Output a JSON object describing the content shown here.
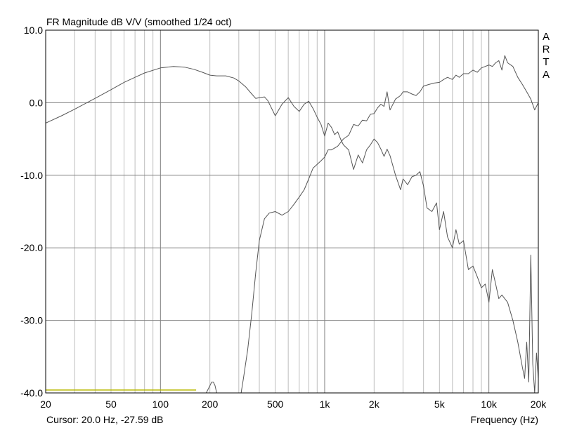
{
  "chart_data": {
    "type": "line",
    "title": "FR Magnitude dB V/V (smoothed 1/24 oct)",
    "watermark": [
      "A",
      "R",
      "T",
      "A"
    ],
    "xlabel": "Frequency (Hz)",
    "ylabel": "",
    "x_scale": "log",
    "xlim": [
      20,
      20000
    ],
    "ylim": [
      -40,
      10
    ],
    "grid": true,
    "y_ticks": [
      10,
      0,
      -10,
      -20,
      -30,
      -40
    ],
    "y_tick_labels": [
      "10.0",
      "0.0",
      "-10.0",
      "-20.0",
      "-30.0",
      "-40.0"
    ],
    "x_ticks": [
      20,
      50,
      100,
      200,
      500,
      1000,
      2000,
      5000,
      10000,
      20000
    ],
    "x_tick_labels": [
      "20",
      "50",
      "100",
      "200",
      "500",
      "1k",
      "2k",
      "5k",
      "10k",
      "20k"
    ],
    "cursor_text": "Cursor: 20.0 Hz, -27.59 dB",
    "series": [
      {
        "color": "#555555",
        "x": [
          20,
          25,
          30,
          40,
          50,
          60,
          70,
          80,
          100,
          120,
          140,
          160,
          180,
          200,
          220,
          250,
          280,
          300,
          330,
          360,
          380,
          400,
          430,
          450,
          500,
          550,
          600,
          650,
          700,
          750,
          800,
          850,
          900,
          950,
          1000,
          1050,
          1100,
          1150,
          1200,
          1250,
          1300,
          1400,
          1500,
          1600,
          1700,
          1800,
          1900,
          2000,
          2100,
          2200,
          2300,
          2400,
          2500,
          2700,
          2900,
          3000,
          3200,
          3400,
          3600,
          3800,
          4000,
          4200,
          4500,
          4800,
          5000,
          5300,
          5600,
          6000,
          6300,
          6600,
          7000,
          7500,
          8000,
          8500,
          9000,
          9500,
          10000,
          10500,
          11000,
          11500,
          12000,
          13000,
          14000,
          15000,
          16000,
          16500,
          17000,
          17500,
          18000,
          18500,
          19000,
          19500,
          20000
        ],
        "y": [
          -2.8,
          -1.8,
          -0.9,
          0.6,
          1.8,
          2.8,
          3.5,
          4.1,
          4.8,
          5.0,
          4.9,
          4.6,
          4.2,
          3.8,
          3.7,
          3.7,
          3.4,
          3.0,
          2.2,
          1.2,
          0.6,
          0.7,
          0.8,
          0.3,
          -1.8,
          -0.2,
          0.7,
          -0.5,
          -1.2,
          -0.2,
          0.2,
          -0.8,
          -2.0,
          -3.0,
          -4.6,
          -2.8,
          -3.4,
          -4.4,
          -4.0,
          -5.0,
          -5.8,
          -6.5,
          -9.2,
          -7.2,
          -8.3,
          -6.5,
          -5.8,
          -5.0,
          -5.5,
          -6.4,
          -7.4,
          -6.4,
          -7.3,
          -10.0,
          -12.0,
          -10.5,
          -11.3,
          -10.2,
          -10.0,
          -9.5,
          -11.5,
          -14.5,
          -15.0,
          -13.8,
          -17.5,
          -15.0,
          -18.5,
          -20.0,
          -17.5,
          -19.5,
          -19.0,
          -23.0,
          -22.5,
          -24.0,
          -25.5,
          -25.0,
          -27.5,
          -23.0,
          -25.0,
          -27.0,
          -26.5,
          -27.5,
          -30.0,
          -33.0,
          -36.5,
          -38.0,
          -33.0,
          -38.5,
          -21.0,
          -36.0,
          -40.0,
          -34.5,
          -38.0
        ]
      },
      {
        "color": "#555555",
        "x": [
          310,
          320,
          340,
          360,
          380,
          400,
          430,
          460,
          500,
          550,
          600,
          650,
          700,
          750,
          800,
          850,
          900,
          950,
          1000,
          1050,
          1100,
          1200,
          1300,
          1400,
          1500,
          1600,
          1700,
          1800,
          1900,
          2000,
          2100,
          2200,
          2300,
          2400,
          2500,
          2700,
          2900,
          3000,
          3200,
          3400,
          3600,
          3800,
          4000,
          4300,
          4600,
          5000,
          5300,
          5600,
          6000,
          6300,
          6600,
          7000,
          7500,
          8000,
          8500,
          9000,
          9500,
          10000,
          10500,
          11000,
          11500,
          12000,
          12500,
          13000,
          14000,
          15000,
          16000,
          17000,
          18000,
          19000,
          20000
        ],
        "y": [
          -40.0,
          -38.0,
          -34.0,
          -29.0,
          -23.5,
          -19.0,
          -16.0,
          -15.2,
          -15.0,
          -15.5,
          -15.0,
          -14.0,
          -13.0,
          -12.0,
          -10.5,
          -9.0,
          -8.5,
          -8.0,
          -7.5,
          -6.5,
          -6.5,
          -6.0,
          -5.0,
          -4.5,
          -3.0,
          -3.2,
          -2.4,
          -2.5,
          -1.6,
          -1.5,
          -0.7,
          -0.2,
          -0.5,
          1.5,
          -1.0,
          0.5,
          1.0,
          1.5,
          1.5,
          1.2,
          1.0,
          1.5,
          2.3,
          2.5,
          2.7,
          2.8,
          3.2,
          3.5,
          3.2,
          3.8,
          3.5,
          4.0,
          4.0,
          4.5,
          4.2,
          4.8,
          5.0,
          5.2,
          5.0,
          5.5,
          5.8,
          4.5,
          6.5,
          5.5,
          5.0,
          3.5,
          2.5,
          1.5,
          0.5,
          -1.0,
          0.0
        ]
      },
      {
        "color": "#555555",
        "x": [
          190,
          200,
          205,
          210,
          215,
          220
        ],
        "y": [
          -40.0,
          -39.0,
          -38.5,
          -38.5,
          -39.0,
          -40.0
        ]
      },
      {
        "color": "#b8b800",
        "x": [
          20,
          165
        ],
        "y": [
          -39.6,
          -39.6
        ]
      }
    ]
  }
}
